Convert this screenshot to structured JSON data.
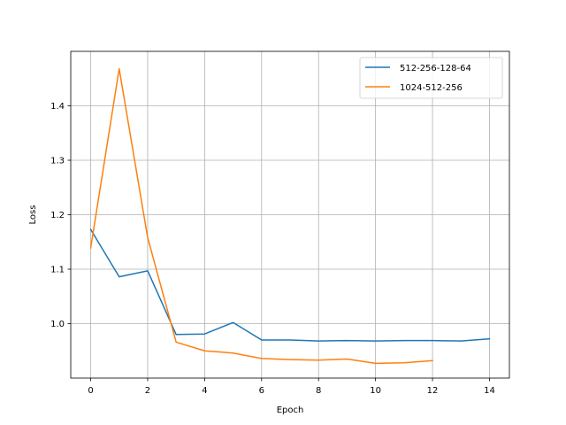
{
  "chart_data": {
    "type": "line",
    "title": "",
    "xlabel": "Epoch",
    "ylabel": "Loss",
    "xlim": [
      -0.7,
      14.7
    ],
    "ylim": [
      0.9,
      1.5
    ],
    "xticks": [
      0,
      2,
      4,
      6,
      8,
      10,
      12,
      14
    ],
    "yticks": [
      1.0,
      1.1,
      1.2,
      1.3,
      1.4
    ],
    "xtick_labels": [
      "0",
      "2",
      "4",
      "6",
      "8",
      "10",
      "12",
      "14"
    ],
    "ytick_labels": [
      "1.0",
      "1.1",
      "1.2",
      "1.3",
      "1.4"
    ],
    "grid": true,
    "legend_position": "top-right",
    "series": [
      {
        "name": "512-256-128-64",
        "color": "#1f77b4",
        "x": [
          0,
          1,
          2,
          3,
          4,
          5,
          6,
          7,
          8,
          9,
          10,
          11,
          12,
          13,
          14
        ],
        "y": [
          1.173,
          1.086,
          1.097,
          0.98,
          0.981,
          1.002,
          0.97,
          0.97,
          0.968,
          0.969,
          0.968,
          0.969,
          0.969,
          0.968,
          0.972
        ]
      },
      {
        "name": "1024-512-256",
        "color": "#ff7f0e",
        "x": [
          0,
          1,
          2,
          3,
          4,
          5,
          6,
          7,
          8,
          9,
          10,
          11,
          12
        ],
        "y": [
          1.139,
          1.468,
          1.158,
          0.966,
          0.95,
          0.946,
          0.936,
          0.934,
          0.933,
          0.935,
          0.927,
          0.928,
          0.932
        ]
      }
    ]
  }
}
